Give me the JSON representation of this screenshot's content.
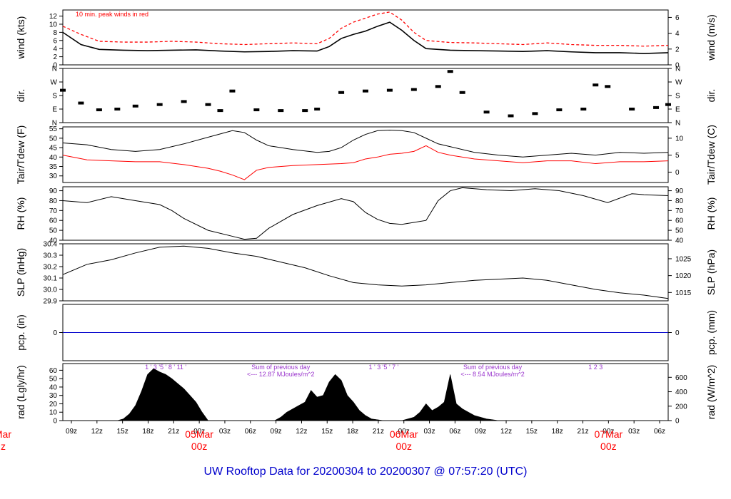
{
  "title": "UW Rooftop Data for 20200304  to  20200307 @ 07:57:20  (UTC)",
  "colors": {
    "frame": "#000000",
    "series_main": "#000000",
    "series_red": "#ff0000",
    "zero_line": "#0000cc",
    "annotation": "#9933cc",
    "date_label": "#ff0000",
    "title": "#0000cc"
  },
  "chart_data": [
    {
      "type": "line",
      "id": "wind",
      "ylabel_left": "wind (kts)",
      "ylabel_right": "wind (m/s)",
      "ylim": [
        0,
        13.5
      ],
      "yticks_left": [
        0,
        2,
        4,
        6,
        8,
        10,
        12
      ],
      "ylim_right": [
        0,
        6.94
      ],
      "yticks_right": [
        0,
        2,
        4,
        6
      ],
      "annotation": "10 min. peak winds in red",
      "series": [
        {
          "role": "mean",
          "color": "#000000",
          "x": [
            0,
            3,
            6,
            10,
            14,
            18,
            22,
            26,
            30,
            34,
            38,
            42,
            44,
            46,
            48,
            50,
            52,
            54,
            56,
            58,
            60,
            64,
            68,
            72,
            76,
            80,
            84,
            88,
            92,
            96,
            100
          ],
          "values": [
            8,
            5,
            3.8,
            3.6,
            3.5,
            3.6,
            3.7,
            3.4,
            3.2,
            3.3,
            3.5,
            3.4,
            4.5,
            6.5,
            7.5,
            8.3,
            9.5,
            10.5,
            8.5,
            6,
            4,
            3.6,
            3.5,
            3.4,
            3.3,
            3.5,
            3.2,
            3,
            3,
            2.8,
            3
          ]
        },
        {
          "role": "peak",
          "color": "#ff0000",
          "x": [
            0,
            3,
            6,
            10,
            14,
            18,
            22,
            26,
            30,
            34,
            38,
            42,
            44,
            46,
            48,
            50,
            52,
            54,
            56,
            58,
            60,
            64,
            68,
            72,
            76,
            80,
            84,
            88,
            92,
            96,
            100
          ],
          "values": [
            9.5,
            7.5,
            5.8,
            5.6,
            5.6,
            5.8,
            5.6,
            5.2,
            5,
            5.2,
            5.4,
            5.2,
            6.5,
            9,
            10.5,
            11.5,
            12.5,
            13,
            11,
            8,
            6,
            5.5,
            5.4,
            5.2,
            5,
            5.4,
            5,
            4.8,
            4.8,
            4.6,
            4.8
          ]
        }
      ]
    },
    {
      "type": "scatter",
      "id": "dir",
      "ylabel_left": "dir.",
      "ylabel_right": "dir.",
      "ylim": [
        0,
        360
      ],
      "yticks_left": [
        "N",
        "E",
        "S",
        "W",
        "N"
      ],
      "ytick_values": [
        0,
        90,
        180,
        270,
        360
      ],
      "x": [
        0,
        3,
        6,
        9,
        12,
        16,
        20,
        24,
        26,
        28,
        32,
        36,
        40,
        42,
        46,
        50,
        54,
        58,
        62,
        64,
        66,
        70,
        74,
        78,
        82,
        86,
        88,
        90,
        94,
        98,
        100
      ],
      "values": [
        215,
        130,
        85,
        90,
        110,
        120,
        140,
        120,
        80,
        210,
        85,
        80,
        80,
        90,
        200,
        210,
        215,
        220,
        240,
        340,
        200,
        70,
        45,
        60,
        85,
        90,
        250,
        240,
        90,
        100,
        120
      ]
    },
    {
      "type": "line",
      "id": "tair",
      "ylabel_left": "Tair/Tdew (F)",
      "ylabel_right": "Tair/Tdew (C)",
      "ylim": [
        26.5,
        56
      ],
      "yticks_left": [
        30,
        35,
        40,
        45,
        50,
        55
      ],
      "ytick_values_right": [
        0,
        5,
        10
      ],
      "yticks_right": [
        "0",
        "5",
        "10"
      ],
      "series": [
        {
          "name": "Tair",
          "color": "#000000",
          "x": [
            0,
            4,
            8,
            12,
            16,
            20,
            24,
            28,
            30,
            32,
            34,
            38,
            42,
            44,
            46,
            48,
            50,
            52,
            54,
            56,
            58,
            60,
            62,
            64,
            68,
            72,
            76,
            80,
            84,
            88,
            92,
            96,
            100
          ],
          "values": [
            47.5,
            46.5,
            44,
            43,
            44,
            47,
            50.5,
            54,
            53,
            49,
            46,
            44,
            42.5,
            43,
            45,
            49,
            52,
            54,
            54.3,
            54,
            53,
            50,
            47,
            45.5,
            42.5,
            41,
            40,
            41,
            42,
            41,
            42.5,
            42,
            42.5
          ]
        },
        {
          "name": "Tdew",
          "color": "#ff0000",
          "x": [
            0,
            4,
            8,
            12,
            16,
            20,
            24,
            26,
            28,
            30,
            32,
            34,
            38,
            42,
            46,
            48,
            50,
            52,
            54,
            56,
            58,
            60,
            62,
            64,
            68,
            72,
            76,
            80,
            84,
            88,
            92,
            96,
            100
          ],
          "values": [
            41,
            38.5,
            38,
            37.5,
            37.5,
            36,
            34,
            32.5,
            30.5,
            28,
            33,
            34.5,
            35.5,
            36,
            36.5,
            37,
            39,
            40,
            41.5,
            42,
            43,
            46,
            42.5,
            41,
            39,
            38,
            37,
            38,
            38,
            36.5,
            37.5,
            37.5,
            38
          ]
        }
      ]
    },
    {
      "type": "line",
      "id": "rh",
      "ylabel_left": "RH (%)",
      "ylabel_right": "RH (%)",
      "ylim": [
        40,
        94
      ],
      "yticks_left": [
        40,
        50,
        60,
        70,
        80,
        90
      ],
      "yticks_right": [
        40,
        50,
        60,
        70,
        80,
        90
      ],
      "series": [
        {
          "color": "#000000",
          "x": [
            0,
            4,
            8,
            12,
            16,
            18,
            20,
            24,
            28,
            30,
            32,
            34,
            38,
            42,
            46,
            48,
            50,
            52,
            54,
            56,
            58,
            60,
            62,
            64,
            66,
            70,
            74,
            78,
            82,
            86,
            90,
            94,
            96,
            100
          ],
          "values": [
            80,
            78,
            84,
            80,
            76,
            70,
            62,
            50,
            44,
            41,
            42,
            52,
            66,
            75,
            82,
            79,
            68,
            61,
            57,
            56,
            58,
            60,
            80,
            90,
            93,
            91,
            90,
            92,
            90,
            85,
            78,
            87,
            86,
            85
          ]
        }
      ]
    },
    {
      "type": "line",
      "id": "slp",
      "ylabel_left": "SLP (inHg)",
      "ylabel_right": "SLP (hPa)",
      "ylim": [
        29.9,
        30.4
      ],
      "yticks_left": [
        "29.9",
        "30.0",
        "30.1",
        "30.2",
        "30.3",
        "30.4"
      ],
      "ytick_values_left": [
        29.9,
        30.0,
        30.1,
        30.2,
        30.3,
        30.4
      ],
      "yticks_right": [
        "1015",
        "1020",
        "1025"
      ],
      "ytick_values_right": [
        29.973,
        30.121,
        30.269
      ],
      "series": [
        {
          "color": "#000000",
          "x": [
            0,
            4,
            8,
            12,
            16,
            20,
            24,
            28,
            32,
            36,
            40,
            44,
            48,
            52,
            56,
            60,
            64,
            68,
            72,
            76,
            80,
            84,
            88,
            92,
            96,
            100
          ],
          "values": [
            30.13,
            30.22,
            30.26,
            30.32,
            30.37,
            30.38,
            30.36,
            30.32,
            30.29,
            30.24,
            30.19,
            30.12,
            30.06,
            30.04,
            30.03,
            30.04,
            30.06,
            30.08,
            30.09,
            30.1,
            30.08,
            30.04,
            30.0,
            29.97,
            29.95,
            29.92
          ]
        }
      ]
    },
    {
      "type": "line",
      "id": "pcp",
      "ylabel_left": "pcp. (in)",
      "ylabel_right": "pcp. (mm)",
      "yticks_left": [
        "0"
      ],
      "yticks_right": [
        "0"
      ],
      "value": 0
    },
    {
      "type": "area",
      "id": "rad",
      "ylabel_left": "rad (Lgly/hr)",
      "ylabel_right": "rad (W/m^2)",
      "ylim": [
        0,
        68
      ],
      "yticks_left": [
        0,
        10,
        20,
        30,
        40,
        50,
        60
      ],
      "yticks_right": [
        "0",
        "200",
        "400",
        "600"
      ],
      "ytick_values_right": [
        0,
        17.2,
        34.4,
        51.6
      ],
      "series": [
        {
          "color": "#000000",
          "x": [
            8,
            9,
            10,
            11,
            12,
            13,
            14,
            15,
            16,
            17,
            18,
            19,
            20,
            21,
            22,
            23,
            24,
            34,
            35,
            36,
            37,
            38,
            39,
            40,
            41,
            42,
            43,
            44,
            45,
            46,
            47,
            48,
            49,
            50,
            51,
            53,
            56,
            57,
            58,
            59,
            60,
            61,
            62,
            63,
            64,
            65,
            66,
            67,
            68,
            69,
            70,
            71,
            72,
            73,
            75,
            86
          ],
          "values": [
            0,
            0,
            2,
            8,
            18,
            35,
            55,
            62,
            58,
            55,
            50,
            44,
            38,
            30,
            22,
            10,
            0,
            0,
            0,
            4,
            10,
            14,
            18,
            22,
            36,
            28,
            30,
            46,
            55,
            48,
            30,
            22,
            12,
            6,
            2,
            0,
            0,
            2,
            4,
            10,
            20,
            12,
            16,
            22,
            55,
            20,
            14,
            10,
            6,
            4,
            2,
            1,
            0,
            0,
            0,
            0
          ]
        }
      ],
      "annotations": [
        {
          "text": "1  '  3  '5   '  8    '  11  '",
          "x": 17
        },
        {
          "text": "Sum of previous day",
          "x": 36
        },
        {
          "text": "<--- 12.87 MJoules/m^2",
          "x": 36
        },
        {
          "text": "1   '   3  '5  '  7   '",
          "x": 53
        },
        {
          "text": "Sum of previous day",
          "x": 71
        },
        {
          "text": "<--- 8.54 MJoules/m^2",
          "x": 71
        },
        {
          "text": "1          2        3",
          "x": 88
        }
      ]
    }
  ],
  "x_axis": {
    "ticks": [
      "09z",
      "12z",
      "15z",
      "18z",
      "21z",
      "00z",
      "03z",
      "06z",
      "09z",
      "12z",
      "15z",
      "18z",
      "21z",
      "00z",
      "03z",
      "06z",
      "09z",
      "12z",
      "15z",
      "18z",
      "21z",
      "00z",
      "03z",
      "06z"
    ],
    "date_labels": [
      {
        "date": "05Mar",
        "time": "00z",
        "tick_index": 5
      },
      {
        "date": "06Mar",
        "time": "00z",
        "tick_index": 13
      },
      {
        "date": "07Mar",
        "time": "00z",
        "tick_index": 21
      }
    ],
    "cut_label_top": "Mar",
    "cut_label_bottom": "z"
  }
}
